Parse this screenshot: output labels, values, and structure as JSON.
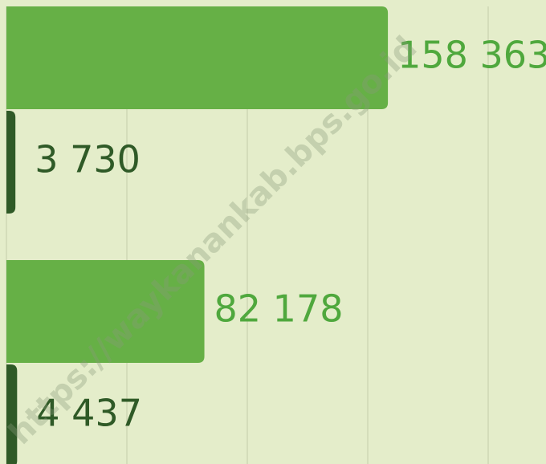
{
  "chart_data": {
    "type": "barh",
    "series": [
      {
        "color": "#66b046",
        "label_color": "#4fa83d",
        "values": [
          158363,
          82178
        ],
        "value_labels": [
          "158 363",
          "82 178"
        ]
      },
      {
        "color": "#2f5a27",
        "label_color": "#2f5a27",
        "values": [
          3730,
          4437
        ],
        "value_labels": [
          "3 730",
          "4 437"
        ]
      }
    ],
    "xlim": [
      0,
      200000
    ],
    "xticks": [
      0,
      50000,
      100000,
      150000,
      200000
    ],
    "grid": true,
    "watermark": "https://waykanankab.bps.go.id"
  }
}
